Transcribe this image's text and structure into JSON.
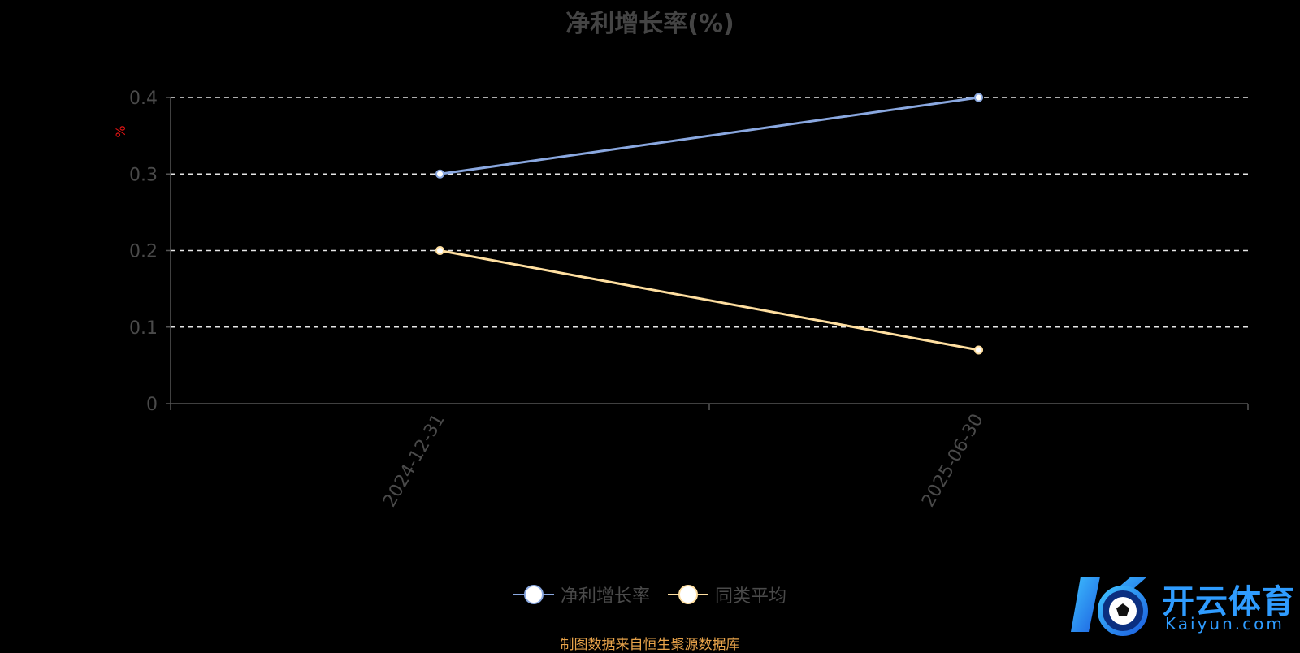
{
  "chart_data": {
    "type": "line",
    "title": "净利增长率(%)",
    "ylabel": "%",
    "categories": [
      "2024-12-31",
      "2025-06-30"
    ],
    "series": [
      {
        "name": "净利增长率",
        "values": [
          0.3,
          0.4
        ],
        "color": "#8aa8e0"
      },
      {
        "name": "同类平均",
        "values": [
          0.2,
          0.07
        ],
        "color": "#ffdfa0"
      }
    ],
    "ylim": [
      0,
      0.4
    ],
    "yticks": [
      "0",
      "0.1",
      "0.2",
      "0.3",
      "0.4"
    ],
    "grid": true,
    "legend_position": "bottom"
  },
  "source_note": "制图数据来自恒生聚源数据库",
  "watermark": {
    "cn": "开云体育",
    "en": "Kaiyun.com",
    "icon": "soccer-ball-logo-icon",
    "color": "#2f9cff"
  }
}
